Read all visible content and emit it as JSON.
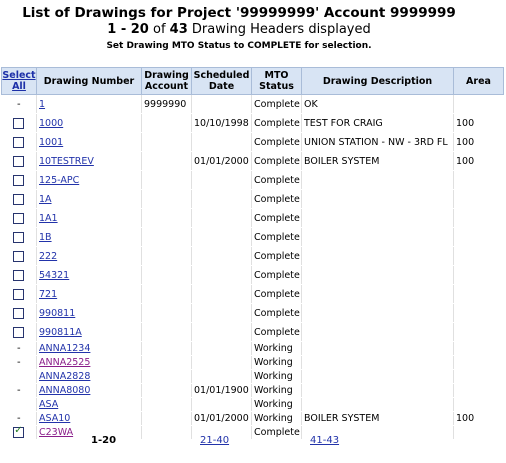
{
  "header": {
    "title": "List of Drawings for Project '99999999' Account 9999999",
    "range": "1 - 20",
    "of": "of",
    "total": "43",
    "suffix": "Drawing Headers displayed",
    "instruction": "Set Drawing MTO Status to COMPLETE for selection."
  },
  "columns": {
    "select_line1": "Select",
    "select_line2": "All",
    "drawing_number": "Drawing Number",
    "drawing_account_1": "Drawing",
    "drawing_account_2": "Account",
    "scheduled_1": "Scheduled",
    "scheduled_2": "Date",
    "mto_1": "MTO",
    "mto_2": "Status",
    "description": "Drawing Description",
    "area": "Area"
  },
  "rows": [
    {
      "sel": "dash",
      "number": "1",
      "account": "9999990",
      "date": "",
      "status": "Complete",
      "desc": "OK",
      "area": ""
    },
    {
      "sel": "box",
      "number": "1000",
      "account": "",
      "date": "10/10/1998",
      "status": "Complete",
      "desc": "TEST FOR CRAIG",
      "area": "100"
    },
    {
      "sel": "box",
      "number": "1001",
      "account": "",
      "date": "",
      "status": "Complete",
      "desc": "UNION STATION - NW - 3RD FL",
      "area": "100"
    },
    {
      "sel": "box",
      "number": "10TESTREV",
      "account": "",
      "date": "01/01/2000",
      "status": "Complete",
      "desc": "BOILER SYSTEM",
      "area": "100"
    },
    {
      "sel": "box",
      "number": "125-APC",
      "account": "",
      "date": "",
      "status": "Complete",
      "desc": "",
      "area": ""
    },
    {
      "sel": "box",
      "number": "1A",
      "account": "",
      "date": "",
      "status": "Complete",
      "desc": "",
      "area": ""
    },
    {
      "sel": "box",
      "number": "1A1",
      "account": "",
      "date": "",
      "status": "Complete",
      "desc": "",
      "area": ""
    },
    {
      "sel": "box",
      "number": "1B",
      "account": "",
      "date": "",
      "status": "Complete",
      "desc": "",
      "area": ""
    },
    {
      "sel": "box",
      "number": "222",
      "account": "",
      "date": "",
      "status": "Complete",
      "desc": "",
      "area": ""
    },
    {
      "sel": "box",
      "number": "54321",
      "account": "",
      "date": "",
      "status": "Complete",
      "desc": "",
      "area": ""
    },
    {
      "sel": "box",
      "number": "721",
      "account": "",
      "date": "",
      "status": "Complete",
      "desc": "",
      "area": ""
    },
    {
      "sel": "box",
      "number": "990811",
      "account": "",
      "date": "",
      "status": "Complete",
      "desc": "",
      "area": ""
    },
    {
      "sel": "box",
      "number": "990811A",
      "account": "",
      "date": "",
      "status": "Complete",
      "desc": "",
      "area": ""
    },
    {
      "sel": "dash",
      "number": "ANNA1234",
      "account": "",
      "date": "",
      "status": "Working",
      "desc": "",
      "area": ""
    },
    {
      "sel": "dash",
      "number": "ANNA2525",
      "account": "",
      "date": "",
      "status": "Working",
      "desc": "",
      "area": "",
      "visited": true,
      "group": true
    },
    {
      "sel": "",
      "number": "ANNA2828",
      "account": "",
      "date": "",
      "status": "Working",
      "desc": "",
      "area": ""
    },
    {
      "sel": "dash",
      "number": "ANNA8080",
      "account": "",
      "date": "01/01/1900",
      "status": "Working",
      "desc": "",
      "area": "",
      "group": true
    },
    {
      "sel": "",
      "number": "ASA",
      "account": "",
      "date": "",
      "status": "Working",
      "desc": "",
      "area": ""
    },
    {
      "sel": "dash",
      "number": "ASA10",
      "account": "",
      "date": "01/01/2000",
      "status": "Working",
      "desc": "BOILER SYSTEM",
      "area": "100",
      "group": true
    },
    {
      "sel": "checked",
      "number": "C23WA",
      "account": "",
      "date": "",
      "status": "Complete",
      "desc": "",
      "area": "",
      "visited": true
    }
  ],
  "pager": {
    "current": "1-20",
    "page2": "21-40",
    "page3": "41-43"
  }
}
